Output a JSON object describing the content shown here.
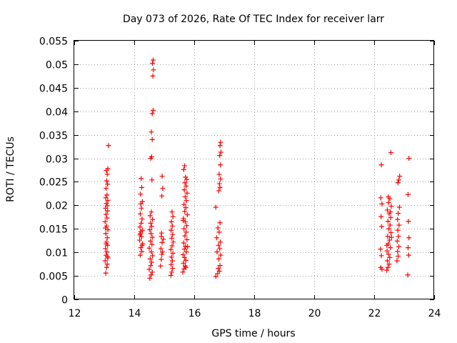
{
  "chart_data": {
    "type": "scatter",
    "title": "Day 073 of 2026, Rate Of TEC Index for receiver larr",
    "xlabel": "GPS time / hours",
    "ylabel": "ROTI / TECUs",
    "xlim": [
      12,
      24
    ],
    "ylim": [
      0,
      0.055
    ],
    "x_ticks": [
      12,
      14,
      16,
      18,
      20,
      22,
      24
    ],
    "x_tick_labels": [
      "12",
      "14",
      "16",
      "18",
      "20",
      "22",
      "24"
    ],
    "y_ticks": [
      0,
      0.005,
      0.01,
      0.015,
      0.02,
      0.025,
      0.03,
      0.035,
      0.04,
      0.045,
      0.05,
      0.055
    ],
    "y_tick_labels": [
      "0",
      "0.005",
      "0.01",
      "0.015",
      "0.02",
      "0.025",
      "0.03",
      "0.035",
      "0.04",
      "0.045",
      "0.05",
      "0.055"
    ],
    "grid": true,
    "marker": "+",
    "color": "#ff0000",
    "points": [
      [
        13.05,
        0.0056
      ],
      [
        13.08,
        0.0068
      ],
      [
        13.1,
        0.0075
      ],
      [
        13.03,
        0.0082
      ],
      [
        13.12,
        0.0088
      ],
      [
        13.06,
        0.0094
      ],
      [
        13.09,
        0.0101
      ],
      [
        13.04,
        0.0108
      ],
      [
        13.11,
        0.0115
      ],
      [
        13.07,
        0.0122
      ],
      [
        13.1,
        0.0131
      ],
      [
        13.05,
        0.014
      ],
      [
        13.12,
        0.0148
      ],
      [
        13.08,
        0.0156
      ],
      [
        13.03,
        0.0165
      ],
      [
        13.09,
        0.0173
      ],
      [
        13.06,
        0.0181
      ],
      [
        13.11,
        0.0188
      ],
      [
        13.04,
        0.0194
      ],
      [
        13.1,
        0.0199
      ],
      [
        13.07,
        0.0204
      ],
      [
        13.12,
        0.021
      ],
      [
        13.05,
        0.0216
      ],
      [
        13.09,
        0.0222
      ],
      [
        13.06,
        0.0236
      ],
      [
        13.11,
        0.0245
      ],
      [
        13.08,
        0.0252
      ],
      [
        13.1,
        0.0266
      ],
      [
        13.07,
        0.0274
      ],
      [
        13.12,
        0.0278
      ],
      [
        13.14,
        0.0327
      ],
      [
        13.06,
        0.0118
      ],
      [
        13.11,
        0.0091
      ],
      [
        13.04,
        0.0152
      ],
      [
        14.2,
        0.0094
      ],
      [
        14.25,
        0.0102
      ],
      [
        14.22,
        0.011
      ],
      [
        14.28,
        0.0118
      ],
      [
        14.18,
        0.0126
      ],
      [
        14.24,
        0.0133
      ],
      [
        14.21,
        0.014
      ],
      [
        14.27,
        0.0147
      ],
      [
        14.19,
        0.0154
      ],
      [
        14.23,
        0.0162
      ],
      [
        14.26,
        0.0171
      ],
      [
        14.2,
        0.0182
      ],
      [
        14.24,
        0.0194
      ],
      [
        14.22,
        0.0203
      ],
      [
        14.27,
        0.0208
      ],
      [
        14.21,
        0.0224
      ],
      [
        14.25,
        0.0238
      ],
      [
        14.23,
        0.0257
      ],
      [
        14.19,
        0.0137
      ],
      [
        14.26,
        0.0115
      ],
      [
        14.22,
        0.0144
      ],
      [
        14.52,
        0.0045
      ],
      [
        14.56,
        0.0052
      ],
      [
        14.6,
        0.0058
      ],
      [
        14.5,
        0.0064
      ],
      [
        14.55,
        0.0072
      ],
      [
        14.58,
        0.0079
      ],
      [
        14.53,
        0.0086
      ],
      [
        14.61,
        0.0093
      ],
      [
        14.57,
        0.0101
      ],
      [
        14.5,
        0.0109
      ],
      [
        14.59,
        0.0117
      ],
      [
        14.54,
        0.0124
      ],
      [
        14.6,
        0.0132
      ],
      [
        14.56,
        0.014
      ],
      [
        14.52,
        0.0148
      ],
      [
        14.58,
        0.0155
      ],
      [
        14.55,
        0.0162
      ],
      [
        14.61,
        0.017
      ],
      [
        14.53,
        0.0178
      ],
      [
        14.57,
        0.0186
      ],
      [
        14.59,
        0.0254
      ],
      [
        14.55,
        0.03
      ],
      [
        14.58,
        0.0303
      ],
      [
        14.6,
        0.034
      ],
      [
        14.57,
        0.0356
      ],
      [
        14.6,
        0.0395
      ],
      [
        14.63,
        0.0402
      ],
      [
        14.62,
        0.0475
      ],
      [
        14.64,
        0.0488
      ],
      [
        14.61,
        0.0502
      ],
      [
        14.63,
        0.0509
      ],
      [
        14.88,
        0.0071
      ],
      [
        14.9,
        0.0085
      ],
      [
        14.92,
        0.0096
      ],
      [
        14.89,
        0.0108
      ],
      [
        14.93,
        0.0121
      ],
      [
        14.9,
        0.0134
      ],
      [
        14.91,
        0.0141
      ],
      [
        14.92,
        0.022
      ],
      [
        14.95,
        0.0236
      ],
      [
        14.93,
        0.0262
      ],
      [
        14.97,
        0.0128
      ],
      [
        14.94,
        0.0101
      ],
      [
        15.22,
        0.0051
      ],
      [
        15.25,
        0.0058
      ],
      [
        15.28,
        0.0066
      ],
      [
        15.23,
        0.0074
      ],
      [
        15.27,
        0.0082
      ],
      [
        15.24,
        0.009
      ],
      [
        15.29,
        0.0098
      ],
      [
        15.22,
        0.0106
      ],
      [
        15.26,
        0.0114
      ],
      [
        15.3,
        0.0122
      ],
      [
        15.25,
        0.013
      ],
      [
        15.28,
        0.0138
      ],
      [
        15.23,
        0.0147
      ],
      [
        15.27,
        0.0156
      ],
      [
        15.24,
        0.0165
      ],
      [
        15.29,
        0.0176
      ],
      [
        15.26,
        0.0186
      ],
      [
        15.62,
        0.0058
      ],
      [
        15.66,
        0.0065
      ],
      [
        15.7,
        0.0071
      ],
      [
        15.64,
        0.0077
      ],
      [
        15.72,
        0.0083
      ],
      [
        15.68,
        0.0089
      ],
      [
        15.63,
        0.0095
      ],
      [
        15.74,
        0.0101
      ],
      [
        15.67,
        0.0107
      ],
      [
        15.71,
        0.0113
      ],
      [
        15.65,
        0.012
      ],
      [
        15.76,
        0.0127
      ],
      [
        15.69,
        0.0135
      ],
      [
        15.73,
        0.0143
      ],
      [
        15.66,
        0.015
      ],
      [
        15.75,
        0.0157
      ],
      [
        15.7,
        0.0165
      ],
      [
        15.64,
        0.0172
      ],
      [
        15.77,
        0.018
      ],
      [
        15.68,
        0.0187
      ],
      [
        15.72,
        0.0195
      ],
      [
        15.66,
        0.0202
      ],
      [
        15.74,
        0.021
      ],
      [
        15.7,
        0.0218
      ],
      [
        15.76,
        0.0226
      ],
      [
        15.67,
        0.0233
      ],
      [
        15.73,
        0.0241
      ],
      [
        15.69,
        0.0248
      ],
      [
        15.75,
        0.0255
      ],
      [
        15.71,
        0.026
      ],
      [
        15.65,
        0.0276
      ],
      [
        15.68,
        0.0284
      ],
      [
        15.63,
        0.0168
      ],
      [
        15.78,
        0.0112
      ],
      [
        15.72,
        0.0068
      ],
      [
        16.72,
        0.0049
      ],
      [
        16.78,
        0.0055
      ],
      [
        16.84,
        0.006
      ],
      [
        16.8,
        0.0066
      ],
      [
        16.86,
        0.0072
      ],
      [
        16.82,
        0.0086
      ],
      [
        16.88,
        0.0094
      ],
      [
        16.76,
        0.0101
      ],
      [
        16.85,
        0.0108
      ],
      [
        16.81,
        0.0115
      ],
      [
        16.87,
        0.0122
      ],
      [
        16.75,
        0.0131
      ],
      [
        16.83,
        0.0143
      ],
      [
        16.79,
        0.0152
      ],
      [
        16.86,
        0.0163
      ],
      [
        16.72,
        0.0196
      ],
      [
        16.82,
        0.0231
      ],
      [
        16.86,
        0.0238
      ],
      [
        16.84,
        0.0246
      ],
      [
        16.88,
        0.0256
      ],
      [
        16.83,
        0.0266
      ],
      [
        16.87,
        0.0286
      ],
      [
        16.85,
        0.0306
      ],
      [
        16.89,
        0.0313
      ],
      [
        16.86,
        0.0327
      ],
      [
        16.88,
        0.0334
      ]
    ],
    "points_late": [
      [
        22.24,
        0.0286
      ],
      [
        22.22,
        0.0216
      ],
      [
        22.26,
        0.0203
      ],
      [
        22.23,
        0.0176
      ],
      [
        22.25,
        0.0155
      ],
      [
        22.21,
        0.0107
      ],
      [
        22.24,
        0.0093
      ],
      [
        22.22,
        0.0068
      ],
      [
        22.26,
        0.0064
      ],
      [
        22.42,
        0.0062
      ],
      [
        22.46,
        0.0068
      ],
      [
        22.5,
        0.0075
      ],
      [
        22.44,
        0.0082
      ],
      [
        22.52,
        0.0089
      ],
      [
        22.48,
        0.0096
      ],
      [
        22.43,
        0.0103
      ],
      [
        22.54,
        0.011
      ],
      [
        22.47,
        0.0118
      ],
      [
        22.51,
        0.0126
      ],
      [
        22.45,
        0.0134
      ],
      [
        22.56,
        0.0142
      ],
      [
        22.49,
        0.015
      ],
      [
        22.53,
        0.0158
      ],
      [
        22.46,
        0.0166
      ],
      [
        22.55,
        0.0174
      ],
      [
        22.5,
        0.0182
      ],
      [
        22.44,
        0.019
      ],
      [
        22.57,
        0.0198
      ],
      [
        22.48,
        0.0206
      ],
      [
        22.52,
        0.0214
      ],
      [
        22.47,
        0.0218
      ],
      [
        22.54,
        0.0186
      ],
      [
        22.58,
        0.0132
      ],
      [
        22.42,
        0.0115
      ],
      [
        22.56,
        0.0312
      ],
      [
        22.76,
        0.0082
      ],
      [
        22.8,
        0.0092
      ],
      [
        22.78,
        0.0102
      ],
      [
        22.82,
        0.0112
      ],
      [
        22.77,
        0.0124
      ],
      [
        22.81,
        0.0134
      ],
      [
        22.79,
        0.0147
      ],
      [
        22.83,
        0.0158
      ],
      [
        22.78,
        0.017
      ],
      [
        22.8,
        0.0183
      ],
      [
        22.84,
        0.0196
      ],
      [
        22.79,
        0.0248
      ],
      [
        22.82,
        0.0254
      ],
      [
        22.85,
        0.0262
      ],
      [
        23.12,
        0.0052
      ],
      [
        23.15,
        0.0094
      ],
      [
        23.13,
        0.011
      ],
      [
        23.16,
        0.0131
      ],
      [
        23.14,
        0.0166
      ],
      [
        23.13,
        0.0223
      ],
      [
        23.16,
        0.03
      ]
    ]
  }
}
